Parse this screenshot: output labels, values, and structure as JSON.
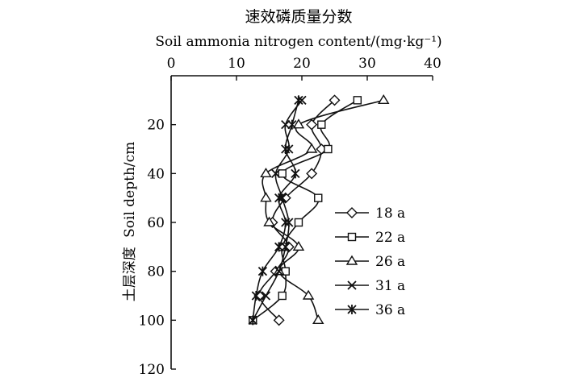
{
  "chart_data": {
    "type": "line",
    "title_cn": "速效磷质量分数",
    "xlabel": "Soil ammonia nitrogen content/(mg·kg⁻¹)",
    "ylabel_cn": "土层深度",
    "ylabel_en": "Soil depth/cm",
    "xlim": [
      0,
      40
    ],
    "ylim": [
      0,
      120
    ],
    "xticks": [
      0,
      10,
      20,
      30,
      40
    ],
    "yticks": [
      20,
      40,
      60,
      80,
      100,
      120
    ],
    "x_axis_position": "top",
    "y_inverted": true,
    "grid": false,
    "legend_position": "center-right",
    "series": [
      {
        "name": "18 a",
        "marker": "diamond",
        "depth": [
          10,
          20,
          30,
          40,
          50,
          60,
          70,
          80,
          90,
          100
        ],
        "values": [
          25.0,
          21.5,
          23.0,
          21.5,
          17.5,
          15.5,
          18.0,
          16.0,
          13.5,
          16.5
        ]
      },
      {
        "name": "22 a",
        "marker": "square",
        "depth": [
          10,
          20,
          30,
          40,
          50,
          60,
          70,
          80,
          90,
          100
        ],
        "values": [
          28.5,
          23.0,
          24.0,
          17.0,
          22.5,
          19.5,
          17.0,
          17.5,
          17.0,
          12.5
        ]
      },
      {
        "name": "26 a",
        "marker": "triangle",
        "depth": [
          10,
          20,
          30,
          40,
          50,
          60,
          70,
          80,
          90,
          100
        ],
        "values": [
          32.5,
          19.5,
          21.5,
          14.5,
          14.5,
          15.0,
          19.5,
          16.5,
          21.0,
          22.5
        ]
      },
      {
        "name": "31 a",
        "marker": "x",
        "depth": [
          10,
          20,
          30,
          40,
          50,
          60,
          70,
          80,
          90,
          100
        ],
        "values": [
          20.0,
          17.5,
          18.0,
          16.0,
          17.0,
          18.0,
          17.5,
          16.5,
          14.5,
          12.5
        ]
      },
      {
        "name": "36 a",
        "marker": "star",
        "depth": [
          10,
          20,
          30,
          40,
          50,
          60,
          70,
          80,
          90,
          100
        ],
        "values": [
          19.5,
          18.5,
          17.5,
          19.0,
          16.5,
          17.5,
          16.5,
          14.0,
          13.0,
          12.5
        ]
      }
    ]
  }
}
